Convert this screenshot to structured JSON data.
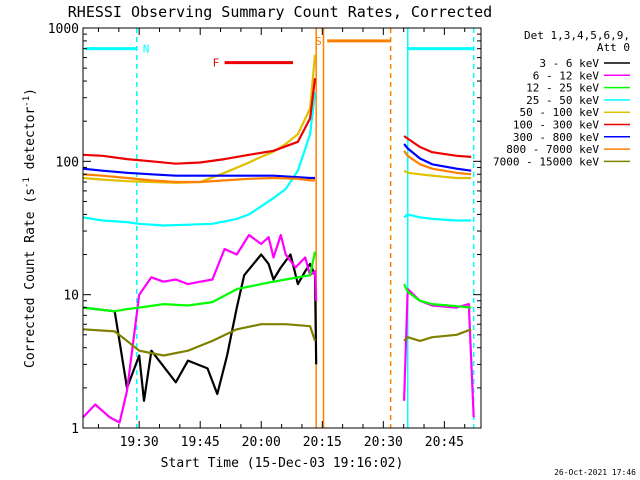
{
  "chart_data": {
    "type": "line",
    "title": "RHESSI Observing Summary Count Rates, Corrected",
    "xlabel": "Start Time (15-Dec-03 19:16:02)",
    "ylabel": "Corrected Count Rate (s-1 detector-1)",
    "ylabel_parts": {
      "main": "Corrected Count Rate (s",
      "sup1": "-1",
      "mid": " detector",
      "sup2": "-1",
      "end": ")"
    },
    "yscale": "log",
    "ylim": [
      1,
      1000
    ],
    "xlim": [
      19.27,
      20.9
    ],
    "x_unit": "hour of day (UT)",
    "x_ticks": [
      {
        "v": 19.5,
        "label": "19:30"
      },
      {
        "v": 19.75,
        "label": "19:45"
      },
      {
        "v": 20.0,
        "label": "20:00"
      },
      {
        "v": 20.25,
        "label": "20:15"
      },
      {
        "v": 20.5,
        "label": "20:30"
      },
      {
        "v": 20.75,
        "label": "20:45"
      }
    ],
    "y_ticks": [
      {
        "v": 1,
        "label": "1"
      },
      {
        "v": 10,
        "label": "10"
      },
      {
        "v": 100,
        "label": "100"
      },
      {
        "v": 1000,
        "label": "1000"
      }
    ],
    "legend_header": [
      "Det 1,3,4,5,6,9,",
      "Att 0"
    ],
    "legend_position": "right",
    "timestamp": "26-Oct-2021 17:46",
    "series": [
      {
        "name": "3 - 6 keV",
        "color": "#000000",
        "points": [
          [
            19.27,
            8
          ],
          [
            19.4,
            7.5
          ],
          [
            19.45,
            2
          ],
          [
            19.5,
            3.5
          ],
          [
            19.52,
            1.6
          ],
          [
            19.55,
            3.8
          ],
          [
            19.65,
            2.2
          ],
          [
            19.7,
            3.2
          ],
          [
            19.78,
            2.8
          ],
          [
            19.82,
            1.8
          ],
          [
            19.86,
            3.5
          ],
          [
            19.9,
            8
          ],
          [
            19.93,
            14
          ],
          [
            20.0,
            20
          ],
          [
            20.03,
            17
          ],
          [
            20.05,
            13
          ],
          [
            20.08,
            16
          ],
          [
            20.12,
            20
          ],
          [
            20.15,
            12
          ],
          [
            20.18,
            15
          ],
          [
            20.2,
            17
          ],
          [
            20.22,
            14
          ],
          [
            20.225,
            3
          ]
        ]
      },
      {
        "name": "6 - 12 keV",
        "color": "#ff00ff",
        "points": [
          [
            19.27,
            1.2
          ],
          [
            19.32,
            1.5
          ],
          [
            19.38,
            1.2
          ],
          [
            19.42,
            1.1
          ],
          [
            19.45,
            1.9
          ],
          [
            19.5,
            10
          ],
          [
            19.55,
            13.5
          ],
          [
            19.6,
            12.5
          ],
          [
            19.65,
            13
          ],
          [
            19.7,
            12
          ],
          [
            19.75,
            12.5
          ],
          [
            19.8,
            13
          ],
          [
            19.85,
            22
          ],
          [
            19.9,
            20
          ],
          [
            19.95,
            28
          ],
          [
            20.0,
            24
          ],
          [
            20.03,
            27
          ],
          [
            20.05,
            19
          ],
          [
            20.08,
            28
          ],
          [
            20.1,
            20
          ],
          [
            20.14,
            16
          ],
          [
            20.18,
            19
          ],
          [
            20.2,
            14
          ],
          [
            20.22,
            15
          ],
          [
            20.225,
            9
          ]
        ],
        "after": [
          [
            20.585,
            1.6
          ],
          [
            20.6,
            11
          ],
          [
            20.65,
            9
          ],
          [
            20.7,
            8.3
          ],
          [
            20.8,
            8
          ],
          [
            20.85,
            8.5
          ],
          [
            20.87,
            1.2
          ]
        ]
      },
      {
        "name": "12 - 25 keV",
        "color": "#00ff00",
        "points": [
          [
            19.27,
            8
          ],
          [
            19.4,
            7.5
          ],
          [
            19.45,
            7.8
          ],
          [
            19.5,
            8
          ],
          [
            19.6,
            8.5
          ],
          [
            19.7,
            8.3
          ],
          [
            19.8,
            8.8
          ],
          [
            19.9,
            11
          ],
          [
            20.0,
            12
          ],
          [
            20.05,
            12.5
          ],
          [
            20.1,
            13
          ],
          [
            20.2,
            14
          ],
          [
            20.22,
            21
          ]
        ],
        "after": [
          [
            20.585,
            12
          ],
          [
            20.6,
            10.5
          ],
          [
            20.65,
            9
          ],
          [
            20.7,
            8.5
          ],
          [
            20.8,
            8.2
          ],
          [
            20.86,
            8
          ]
        ]
      },
      {
        "name": "25 - 50 keV",
        "color": "#00ffff",
        "points": [
          [
            19.27,
            38
          ],
          [
            19.35,
            36
          ],
          [
            19.45,
            35
          ],
          [
            19.5,
            34
          ],
          [
            19.6,
            33
          ],
          [
            19.7,
            33.5
          ],
          [
            19.8,
            34
          ],
          [
            19.9,
            37
          ],
          [
            19.95,
            40
          ],
          [
            20.0,
            46
          ],
          [
            20.05,
            53
          ],
          [
            20.1,
            62
          ],
          [
            20.15,
            85
          ],
          [
            20.2,
            160
          ],
          [
            20.22,
            330
          ]
        ],
        "after": [
          [
            20.585,
            38
          ],
          [
            20.6,
            40
          ],
          [
            20.65,
            38
          ],
          [
            20.7,
            37
          ],
          [
            20.8,
            36
          ],
          [
            20.86,
            36
          ]
        ]
      },
      {
        "name": "50 - 100 keV",
        "color": "#e0c000",
        "points": [
          [
            19.27,
            75
          ],
          [
            19.35,
            73
          ],
          [
            19.45,
            71
          ],
          [
            19.55,
            70
          ],
          [
            19.65,
            69
          ],
          [
            19.75,
            70
          ],
          [
            19.85,
            82
          ],
          [
            19.95,
            98
          ],
          [
            20.0,
            108
          ],
          [
            20.05,
            118
          ],
          [
            20.1,
            135
          ],
          [
            20.15,
            160
          ],
          [
            20.2,
            250
          ],
          [
            20.22,
            630
          ]
        ],
        "after": [
          [
            20.585,
            85
          ],
          [
            20.6,
            82
          ],
          [
            20.65,
            80
          ],
          [
            20.7,
            78
          ],
          [
            20.8,
            75
          ],
          [
            20.86,
            75
          ]
        ]
      },
      {
        "name": "100 - 300 keV",
        "color": "#ee0000",
        "points": [
          [
            19.27,
            112
          ],
          [
            19.35,
            110
          ],
          [
            19.45,
            104
          ],
          [
            19.55,
            100
          ],
          [
            19.65,
            96
          ],
          [
            19.75,
            98
          ],
          [
            19.85,
            104
          ],
          [
            19.95,
            112
          ],
          [
            20.05,
            120
          ],
          [
            20.15,
            140
          ],
          [
            20.2,
            210
          ],
          [
            20.22,
            420
          ]
        ],
        "after": [
          [
            20.585,
            155
          ],
          [
            20.6,
            148
          ],
          [
            20.65,
            128
          ],
          [
            20.7,
            117
          ],
          [
            20.8,
            110
          ],
          [
            20.86,
            108
          ]
        ]
      },
      {
        "name": "300 - 800 keV",
        "color": "#0000ff",
        "points": [
          [
            19.27,
            88
          ],
          [
            19.35,
            85
          ],
          [
            19.45,
            82
          ],
          [
            19.55,
            80
          ],
          [
            19.65,
            78
          ],
          [
            19.75,
            78
          ],
          [
            19.85,
            78
          ],
          [
            19.95,
            78
          ],
          [
            20.05,
            78
          ],
          [
            20.15,
            76
          ],
          [
            20.2,
            75
          ],
          [
            20.22,
            75
          ]
        ],
        "after": [
          [
            20.585,
            135
          ],
          [
            20.6,
            125
          ],
          [
            20.65,
            105
          ],
          [
            20.7,
            95
          ],
          [
            20.8,
            88
          ],
          [
            20.86,
            85
          ]
        ]
      },
      {
        "name": "800 - 7000 keV",
        "color": "#ff8000",
        "points": [
          [
            19.27,
            80
          ],
          [
            19.35,
            78
          ],
          [
            19.45,
            75
          ],
          [
            19.55,
            72
          ],
          [
            19.65,
            70
          ],
          [
            19.75,
            70
          ],
          [
            19.85,
            72
          ],
          [
            19.95,
            74
          ],
          [
            20.05,
            75
          ],
          [
            20.15,
            74
          ],
          [
            20.2,
            72
          ],
          [
            20.22,
            72
          ]
        ],
        "after": [
          [
            20.585,
            120
          ],
          [
            20.6,
            110
          ],
          [
            20.65,
            95
          ],
          [
            20.7,
            88
          ],
          [
            20.8,
            82
          ],
          [
            20.86,
            80
          ]
        ]
      },
      {
        "name": "7000 - 15000 keV",
        "color": "#808000",
        "points": [
          [
            19.27,
            5.5
          ],
          [
            19.4,
            5.3
          ],
          [
            19.45,
            4.5
          ],
          [
            19.5,
            3.8
          ],
          [
            19.6,
            3.5
          ],
          [
            19.7,
            3.8
          ],
          [
            19.8,
            4.5
          ],
          [
            19.9,
            5.5
          ],
          [
            20.0,
            6
          ],
          [
            20.1,
            6
          ],
          [
            20.2,
            5.8
          ],
          [
            20.22,
            4.5
          ]
        ],
        "after": [
          [
            20.585,
            4.5
          ],
          [
            20.6,
            4.8
          ],
          [
            20.65,
            4.5
          ],
          [
            20.7,
            4.8
          ],
          [
            20.8,
            5
          ],
          [
            20.86,
            5.5
          ]
        ]
      }
    ],
    "annotations": {
      "n_label": "N",
      "f_label": "F",
      "s_label": "S",
      "n_bars": [
        {
          "x0": 19.28,
          "x1": 19.49,
          "y": 700
        },
        {
          "x0": 20.6,
          "x1": 20.87,
          "y": 700
        }
      ],
      "f_bar": {
        "x0": 19.85,
        "x1": 20.13,
        "y": 550
      },
      "s_bar": {
        "x0": 20.27,
        "x1": 20.53,
        "y": 800
      },
      "cyan_dashed_x": [
        19.49,
        20.87
      ],
      "cyan_solid_x": [
        20.6
      ],
      "orange_solid_x": [
        20.225,
        20.255
      ],
      "orange_dashed_x": [
        20.53
      ]
    }
  }
}
